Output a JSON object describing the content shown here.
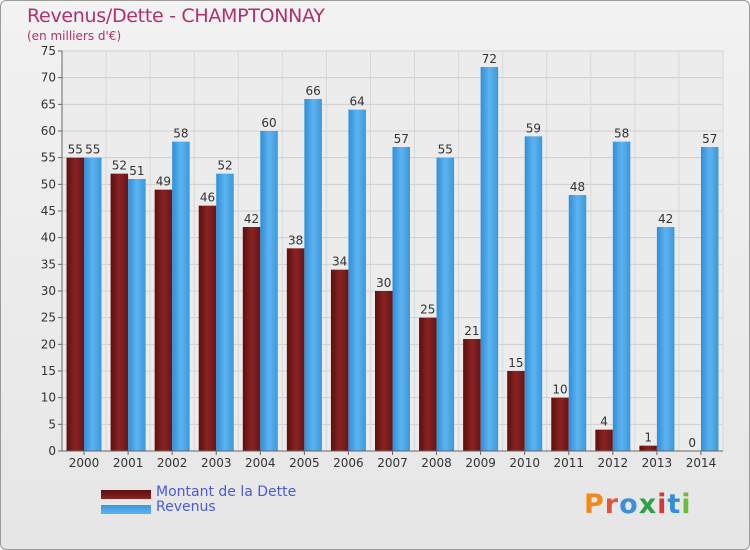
{
  "title": "Revenus/Dette - CHAMPTONNAY",
  "subtitle": "(en milliers d'€)",
  "logo_text": "Proxiti",
  "colors": {
    "dette": "#7a1a1a",
    "revenus": "#4aa3e6",
    "title": "#b0306e",
    "legend_text": "#4a5bd4"
  },
  "chart_data": {
    "type": "bar",
    "title": "Revenus/Dette - CHAMPTONNAY",
    "subtitle": "(en milliers d'€)",
    "categories": [
      "2000",
      "2001",
      "2002",
      "2003",
      "2004",
      "2005",
      "2006",
      "2007",
      "2008",
      "2009",
      "2010",
      "2011",
      "2012",
      "2013",
      "2014"
    ],
    "series": [
      {
        "name": "Montant de la Dette",
        "values": [
          55,
          52,
          49,
          46,
          42,
          38,
          34,
          30,
          25,
          21,
          15,
          10,
          4,
          1,
          0
        ]
      },
      {
        "name": "Revenus",
        "values": [
          55,
          51,
          58,
          52,
          60,
          66,
          64,
          57,
          55,
          72,
          59,
          48,
          58,
          42,
          57
        ]
      }
    ],
    "ylim": [
      0,
      75
    ],
    "yticks": [
      0,
      5,
      10,
      15,
      20,
      25,
      30,
      35,
      40,
      45,
      50,
      55,
      60,
      65,
      70,
      75
    ],
    "grid": true,
    "legend_position": "bottom-left"
  }
}
